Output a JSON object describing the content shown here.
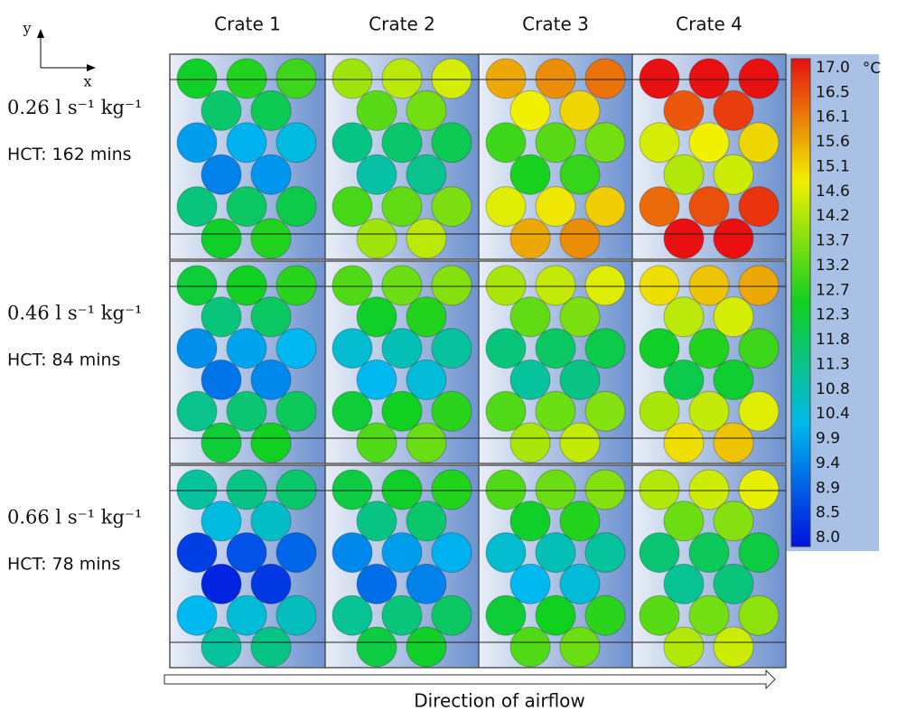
{
  "axes": {
    "y": "y",
    "x": "x"
  },
  "columns": [
    "Crate 1",
    "Crate 2",
    "Crate 3",
    "Crate 4"
  ],
  "rows": [
    {
      "flow": "0.26 l s⁻¹ kg⁻¹",
      "hct": "HCT: 162 mins"
    },
    {
      "flow": "0.46 l s⁻¹ kg⁻¹",
      "hct": "HCT: 84 mins"
    },
    {
      "flow": "0.66 l s⁻¹ kg⁻¹",
      "hct": "HCT: 78 mins"
    }
  ],
  "colorbar": {
    "unit": "°C",
    "labels": [
      "17.0",
      "16.5",
      "16.1",
      "15.6",
      "15.1",
      "14.6",
      "14.2",
      "13.7",
      "13.2",
      "12.7",
      "12.3",
      "11.8",
      "11.3",
      "10.8",
      "10.4",
      "9.9",
      "9.4",
      "8.9",
      "8.5",
      "8.0"
    ]
  },
  "footer": "Direction of airflow"
}
